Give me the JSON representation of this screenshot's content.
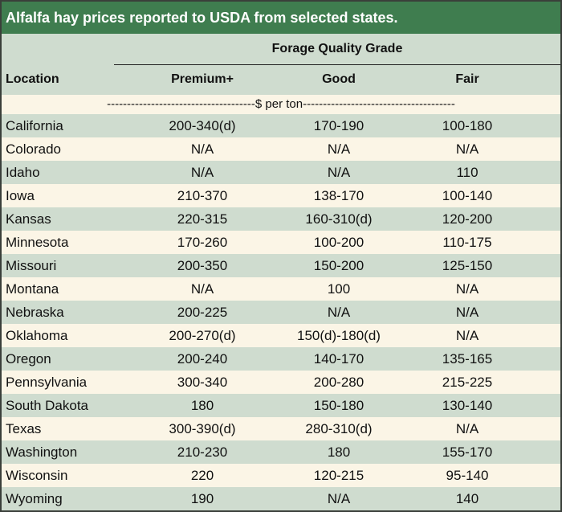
{
  "title": "Alfalfa hay prices reported to USDA from selected states.",
  "header": {
    "group_label": "Forage Quality Grade",
    "location_label": "Location",
    "col1": "Premium+",
    "col2": "Good",
    "col3": "Fair"
  },
  "unit_label": "-------------------------------------$ per ton--------------------------------------",
  "rows": [
    {
      "location": "California",
      "premium": "200-340(d)",
      "good": "170-190",
      "fair": "100-180"
    },
    {
      "location": "Colorado",
      "premium": "N/A",
      "good": "N/A",
      "fair": "N/A"
    },
    {
      "location": "Idaho",
      "premium": "N/A",
      "good": "N/A",
      "fair": "110"
    },
    {
      "location": "Iowa",
      "premium": "210-370",
      "good": "138-170",
      "fair": "100-140"
    },
    {
      "location": "Kansas",
      "premium": "220-315",
      "good": "160-310(d)",
      "fair": "120-200"
    },
    {
      "location": "Minnesota",
      "premium": "170-260",
      "good": "100-200",
      "fair": "110-175"
    },
    {
      "location": "Missouri",
      "premium": "200-350",
      "good": "150-200",
      "fair": "125-150"
    },
    {
      "location": "Montana",
      "premium": "N/A",
      "good": "100",
      "fair": "N/A"
    },
    {
      "location": "Nebraska",
      "premium": "200-225",
      "good": "N/A",
      "fair": "N/A"
    },
    {
      "location": "Oklahoma",
      "premium": "200-270(d)",
      "good": "150(d)-180(d)",
      "fair": "N/A"
    },
    {
      "location": "Oregon",
      "premium": "200-240",
      "good": "140-170",
      "fair": "135-165"
    },
    {
      "location": "Pennsylvania",
      "premium": "300-340",
      "good": "200-280",
      "fair": "215-225"
    },
    {
      "location": "South Dakota",
      "premium": "180",
      "good": "150-180",
      "fair": "130-140"
    },
    {
      "location": "Texas",
      "premium": "300-390(d)",
      "good": "280-310(d)",
      "fair": "N/A"
    },
    {
      "location": "Washington",
      "premium": "210-230",
      "good": "180",
      "fair": "155-170"
    },
    {
      "location": "Wisconsin",
      "premium": "220",
      "good": "120-215",
      "fair": "95-140"
    },
    {
      "location": "Wyoming",
      "premium": "190",
      "good": "N/A",
      "fair": "140"
    }
  ],
  "colors": {
    "title_bg": "#3f7d4f",
    "header_bg": "#cfdccf",
    "row_even": "#cfdccf",
    "row_odd": "#fbf5e6"
  }
}
